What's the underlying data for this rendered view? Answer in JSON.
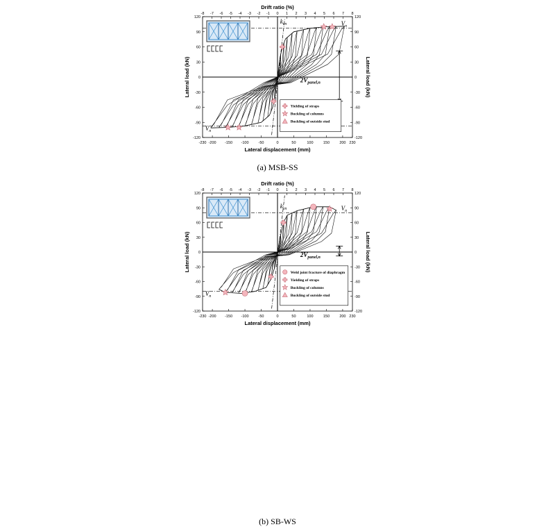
{
  "chart_data": [
    {
      "id": "a",
      "type": "line",
      "caption": "(a)  MSB-SS",
      "xlabel": "Lateral displacement (mm)",
      "ylabel_left": "Lateral load (kN)",
      "ylabel_right": "Lateral load (kN)",
      "top_label": "Drift ratio (%)",
      "xlim": [
        -230,
        230
      ],
      "ylim": [
        -120,
        120
      ],
      "xticks": [
        -230,
        -200,
        -150,
        -100,
        -50,
        0,
        50,
        100,
        150,
        200,
        230
      ],
      "yticks": [
        -120,
        -90,
        -60,
        -30,
        0,
        30,
        60,
        90,
        120
      ],
      "drift_ticks": [
        "-8",
        "-7",
        "-6",
        "-5",
        "-4",
        "-3",
        "-2",
        "-1",
        "0",
        "1",
        "2",
        "3",
        "4",
        "5",
        "6",
        "7",
        "8"
      ],
      "Vn": 97,
      "annotations": {
        "ken": "k",
        "ken_sub": "en",
        "vn": "V",
        "vn_sub": "n",
        "vpanel": "2V",
        "vpanel_sub": "panel,n"
      },
      "legend": [
        "Yielding  of straps",
        "Buckling of columns",
        "Buckling of outside stud"
      ],
      "yield_markers": [
        [
          15,
          60
        ],
        [
          -12,
          -48
        ]
      ],
      "buckling_markers": [
        [
          142,
          100
        ],
        [
          168,
          100
        ],
        [
          -152,
          -100
        ],
        [
          -118,
          -100
        ]
      ],
      "envelope_pos": [
        [
          0,
          0
        ],
        [
          8,
          40
        ],
        [
          15,
          60
        ],
        [
          25,
          76
        ],
        [
          50,
          90
        ],
        [
          100,
          97
        ],
        [
          150,
          100
        ],
        [
          205,
          101
        ]
      ],
      "envelope_neg": [
        [
          0,
          0
        ],
        [
          -8,
          -40
        ],
        [
          -15,
          -60
        ],
        [
          -25,
          -76
        ],
        [
          -50,
          -90
        ],
        [
          -100,
          -97
        ],
        [
          -150,
          -100
        ],
        [
          -205,
          -101
        ]
      ],
      "cycle_peaks": [
        10,
        20,
        30,
        45,
        60,
        80,
        100,
        120,
        140,
        160,
        180,
        205
      ],
      "pinch": 0.18
    },
    {
      "id": "b",
      "type": "line",
      "caption": "(b)  SB-WS",
      "xlabel": "Lateral displacement (mm)",
      "ylabel_left": "Lateral load (kN)",
      "ylabel_right": "Lateral load (kN)",
      "top_label": "Drift ratio (%)",
      "xlim": [
        -230,
        230
      ],
      "ylim": [
        -120,
        120
      ],
      "xticks": [
        -230,
        -200,
        -150,
        -100,
        -50,
        0,
        50,
        100,
        150,
        200,
        230
      ],
      "yticks": [
        -120,
        -90,
        -60,
        -30,
        0,
        30,
        60,
        90,
        120
      ],
      "drift_ticks": [
        "-8",
        "-7",
        "-6",
        "-5",
        "-4",
        "-3",
        "-2",
        "-1",
        "0",
        "1",
        "2",
        "3",
        "4",
        "5",
        "6",
        "7",
        "8"
      ],
      "Vn": 80,
      "annotations": {
        "ken": "k",
        "ken_sub": "en",
        "vn": "V",
        "vn_sub": "n",
        "vpanel": "2V",
        "vpanel_sub": "panel,n"
      },
      "legend": [
        "Weld joint  fracture of diaphragm",
        "Yielding  of straps",
        "Buckling of columns",
        "Buckling of outside stud"
      ],
      "fracture_markers": [
        [
          110,
          92
        ],
        [
          -100,
          -84
        ]
      ],
      "yield_markers": [
        [
          18,
          60
        ],
        [
          -20,
          -50
        ]
      ],
      "buckling_markers": [
        [
          160,
          88
        ],
        [
          -160,
          -82
        ]
      ],
      "envelope_pos": [
        [
          0,
          0
        ],
        [
          8,
          30
        ],
        [
          18,
          60
        ],
        [
          30,
          75
        ],
        [
          60,
          84
        ],
        [
          110,
          92
        ],
        [
          160,
          92
        ],
        [
          180,
          85
        ]
      ],
      "envelope_neg": [
        [
          0,
          0
        ],
        [
          -8,
          -30
        ],
        [
          -20,
          -55
        ],
        [
          -35,
          -72
        ],
        [
          -70,
          -80
        ],
        [
          -110,
          -84
        ],
        [
          -160,
          -82
        ],
        [
          -180,
          -76
        ]
      ],
      "cycle_peaks": [
        10,
        20,
        30,
        45,
        60,
        80,
        100,
        120,
        140,
        160,
        180
      ],
      "pinch": 0.12
    }
  ]
}
